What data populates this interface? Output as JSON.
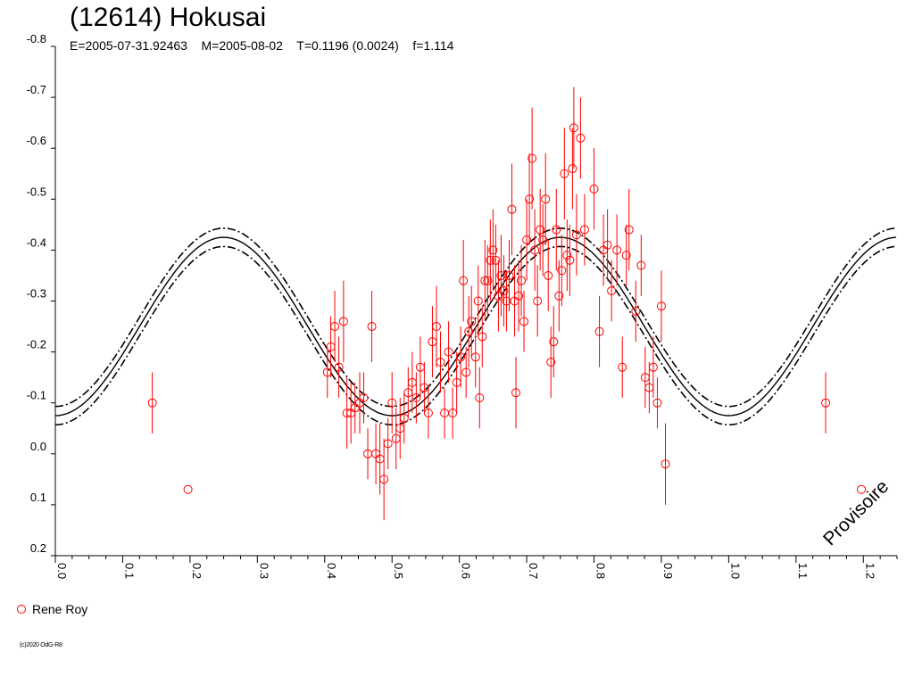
{
  "chart_data": {
    "type": "scatter",
    "title": "(12614) Hokusai",
    "subtitle": {
      "epoch": "E=2005-07-31.92463",
      "mid": "M=2005-08-02",
      "period": "T=0.1196 (0.0024)",
      "f": "f=1.114"
    },
    "xlim": [
      0.0,
      1.25
    ],
    "ylim": [
      -0.8,
      0.2
    ],
    "y_inverted": true,
    "x_ticks": [
      "0.0",
      "0.1",
      "0.2",
      "0.3",
      "0.4",
      "0.5",
      "0.6",
      "0.7",
      "0.8",
      "0.9",
      "1.0",
      "1.1",
      "1.2"
    ],
    "x_tick_values": [
      0.0,
      0.1,
      0.2,
      0.3,
      0.4,
      0.5,
      0.6,
      0.7,
      0.8,
      0.9,
      1.0,
      1.1,
      1.2
    ],
    "y_ticks": [
      "-0.8",
      "-0.7",
      "-0.6",
      "-0.5",
      "-0.4",
      "-0.3",
      "-0.2",
      "-0.1",
      "0.0",
      "0.1",
      "0.2"
    ],
    "y_tick_values": [
      -0.8,
      -0.7,
      -0.6,
      -0.5,
      -0.4,
      -0.3,
      -0.2,
      -0.1,
      0.0,
      0.1,
      0.2
    ],
    "fit": {
      "type": "sinusoid",
      "center": -0.25,
      "amplitude": 0.175,
      "peak_phase": 0.25,
      "period": 0.5,
      "envelope_offset": 0.018,
      "color": "#000000"
    },
    "series": [
      {
        "name": "Rene Roy",
        "color": "#ff0000",
        "marker": "open-circle",
        "points": [
          [
            0.144,
            -0.1,
            0.06
          ],
          [
            0.197,
            0.07,
            0
          ],
          [
            0.404,
            -0.16,
            0.05
          ],
          [
            0.409,
            -0.21,
            0.06
          ],
          [
            0.415,
            -0.25,
            0.07
          ],
          [
            0.421,
            -0.17,
            0.06
          ],
          [
            0.428,
            -0.26,
            0.08
          ],
          [
            0.433,
            -0.08,
            0.07
          ],
          [
            0.439,
            -0.08,
            0.06
          ],
          [
            0.445,
            -0.09,
            0.05
          ],
          [
            0.452,
            -0.1,
            0.06
          ],
          [
            0.458,
            -0.11,
            0.05
          ],
          [
            0.464,
            -0.0,
            0.05
          ],
          [
            0.47,
            -0.25,
            0.07
          ],
          [
            0.476,
            -0.0,
            0.06
          ],
          [
            0.482,
            0.01,
            0.07
          ],
          [
            0.488,
            0.05,
            0.08
          ],
          [
            0.494,
            -0.02,
            0.05
          ],
          [
            0.5,
            -0.1,
            0.06
          ],
          [
            0.506,
            -0.03,
            0.06
          ],
          [
            0.512,
            -0.05,
            0.06
          ],
          [
            0.518,
            -0.07,
            0.05
          ],
          [
            0.524,
            -0.12,
            0.05
          ],
          [
            0.53,
            -0.14,
            0.06
          ],
          [
            0.536,
            -0.11,
            0.05
          ],
          [
            0.542,
            -0.17,
            0.06
          ],
          [
            0.548,
            -0.13,
            0.05
          ],
          [
            0.554,
            -0.08,
            0.05
          ],
          [
            0.56,
            -0.22,
            0.07
          ],
          [
            0.566,
            -0.25,
            0.08
          ],
          [
            0.572,
            -0.18,
            0.06
          ],
          [
            0.578,
            -0.08,
            0.05
          ],
          [
            0.584,
            -0.2,
            0.06
          ],
          [
            0.59,
            -0.08,
            0.05
          ],
          [
            0.596,
            -0.14,
            0.06
          ],
          [
            0.602,
            -0.19,
            0.06
          ],
          [
            0.606,
            -0.34,
            0.08
          ],
          [
            0.61,
            -0.16,
            0.05
          ],
          [
            0.614,
            -0.24,
            0.07
          ],
          [
            0.618,
            -0.26,
            0.07
          ],
          [
            0.624,
            -0.19,
            0.06
          ],
          [
            0.628,
            -0.3,
            0.07
          ],
          [
            0.63,
            -0.11,
            0.06
          ],
          [
            0.634,
            -0.23,
            0.06
          ],
          [
            0.638,
            -0.34,
            0.08
          ],
          [
            0.642,
            -0.34,
            0.07
          ],
          [
            0.646,
            -0.38,
            0.08
          ],
          [
            0.65,
            -0.4,
            0.08
          ],
          [
            0.654,
            -0.38,
            0.07
          ],
          [
            0.658,
            -0.31,
            0.07
          ],
          [
            0.662,
            -0.35,
            0.08
          ],
          [
            0.666,
            -0.32,
            0.07
          ],
          [
            0.67,
            -0.3,
            0.06
          ],
          [
            0.674,
            -0.35,
            0.07
          ],
          [
            0.678,
            -0.48,
            0.09
          ],
          [
            0.682,
            -0.3,
            0.07
          ],
          [
            0.684,
            -0.12,
            0.07
          ],
          [
            0.688,
            -0.31,
            0.07
          ],
          [
            0.692,
            -0.34,
            0.07
          ],
          [
            0.696,
            -0.26,
            0.06
          ],
          [
            0.7,
            -0.42,
            0.08
          ],
          [
            0.704,
            -0.5,
            0.09
          ],
          [
            0.708,
            -0.58,
            0.1
          ],
          [
            0.712,
            -0.4,
            0.08
          ],
          [
            0.716,
            -0.3,
            0.07
          ],
          [
            0.72,
            -0.44,
            0.08
          ],
          [
            0.724,
            -0.42,
            0.07
          ],
          [
            0.728,
            -0.5,
            0.09
          ],
          [
            0.732,
            -0.35,
            0.07
          ],
          [
            0.736,
            -0.18,
            0.07
          ],
          [
            0.74,
            -0.22,
            0.07
          ],
          [
            0.744,
            -0.44,
            0.08
          ],
          [
            0.748,
            -0.31,
            0.07
          ],
          [
            0.752,
            -0.36,
            0.07
          ],
          [
            0.756,
            -0.55,
            0.09
          ],
          [
            0.76,
            -0.39,
            0.07
          ],
          [
            0.764,
            -0.38,
            0.07
          ],
          [
            0.768,
            -0.56,
            0.08
          ],
          [
            0.77,
            -0.64,
            0.08
          ],
          [
            0.774,
            -0.43,
            0.08
          ],
          [
            0.78,
            -0.62,
            0.08
          ],
          [
            0.786,
            -0.44,
            0.07
          ],
          [
            0.8,
            -0.52,
            0.08
          ],
          [
            0.808,
            -0.24,
            0.07
          ],
          [
            0.814,
            -0.4,
            0.07
          ],
          [
            0.82,
            -0.41,
            0.07
          ],
          [
            0.826,
            -0.32,
            0.06
          ],
          [
            0.834,
            -0.4,
            0.07
          ],
          [
            0.842,
            -0.17,
            0.06
          ],
          [
            0.848,
            -0.39,
            0.06
          ],
          [
            0.852,
            -0.44,
            0.08
          ],
          [
            0.862,
            -0.28,
            0.06
          ],
          [
            0.87,
            -0.37,
            0.06
          ],
          [
            0.876,
            -0.15,
            0.06
          ],
          [
            0.882,
            -0.13,
            0.05
          ],
          [
            0.888,
            -0.17,
            0.06
          ],
          [
            0.894,
            -0.1,
            0.05
          ],
          [
            0.9,
            -0.29,
            0.07
          ],
          [
            0.906,
            0.02,
            0.08
          ],
          [
            1.144,
            -0.1,
            0.06
          ],
          [
            1.197,
            0.07,
            0
          ]
        ]
      }
    ],
    "legend": {
      "position": "bottom-left",
      "entries": [
        "Rene Roy"
      ]
    },
    "stamp": "Provisoire",
    "copyright": "(c)2020 OdG-R8"
  }
}
